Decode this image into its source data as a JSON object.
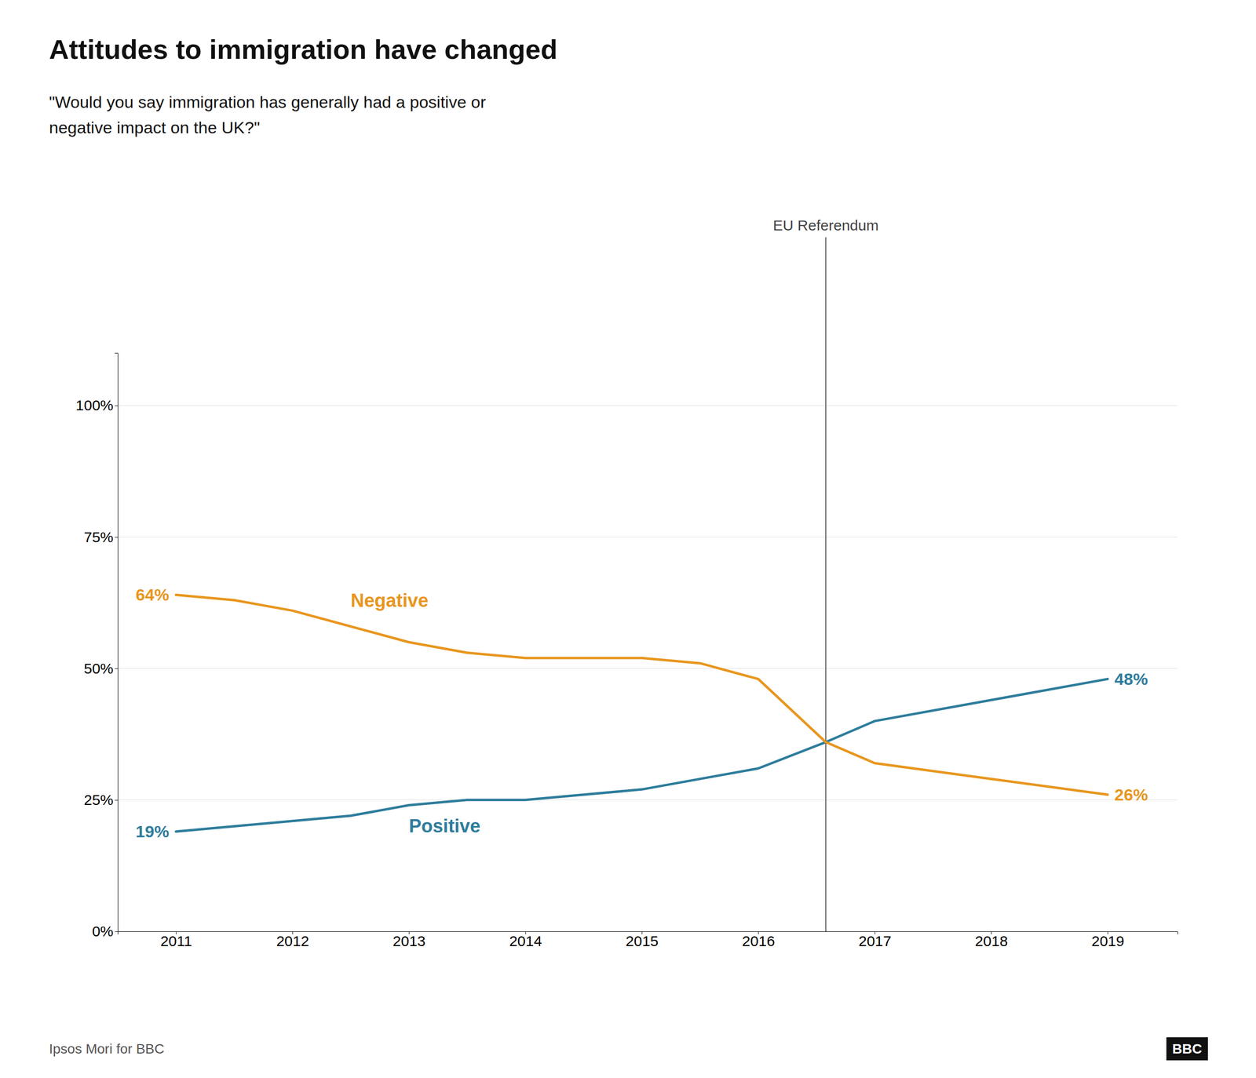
{
  "chart_data": {
    "type": "line",
    "title": "Attitudes to immigration have changed",
    "subtitle": "\"Would you say immigration has generally had a positive or\nnegative impact on the UK?\"",
    "x": [
      2011,
      2011.5,
      2012,
      2012.5,
      2013,
      2013.5,
      2014,
      2014.5,
      2015,
      2015.5,
      2016,
      2016.58,
      2017,
      2018,
      2019
    ],
    "series": [
      {
        "name": "Positive",
        "color": "#2E7D9C",
        "values": [
          19,
          20,
          21,
          22,
          24,
          25,
          25,
          26,
          27,
          29,
          31,
          36,
          40,
          44,
          48
        ],
        "value_labels": [
          "19%",
          null,
          null,
          null,
          null,
          null,
          null,
          null,
          null,
          null,
          null,
          null,
          null,
          null,
          "48%"
        ]
      },
      {
        "name": "Negative",
        "color": "#E8961E",
        "values": [
          64,
          63,
          61,
          58,
          55,
          53,
          52,
          52,
          52,
          51,
          48,
          36,
          32,
          29,
          26
        ],
        "value_labels": [
          "64%",
          null,
          null,
          null,
          null,
          null,
          null,
          null,
          null,
          null,
          null,
          null,
          null,
          null,
          "26%"
        ]
      }
    ],
    "annotations": [
      {
        "text": "EU Referendum",
        "x": 2016.58
      }
    ],
    "xlim": [
      2010.5,
      2019.6
    ],
    "xticks": [
      2011,
      2012,
      2013,
      2014,
      2015,
      2016,
      2017,
      2018,
      2019
    ],
    "ylim": [
      0,
      110
    ],
    "yticks": [
      {
        "value": 0,
        "label": "0%"
      },
      {
        "value": 25,
        "label": "25%"
      },
      {
        "value": 50,
        "label": "50%"
      },
      {
        "value": 75,
        "label": "75%"
      },
      {
        "value": 100,
        "label": "100%"
      }
    ],
    "grid": true,
    "source": "Ipsos Mori for BBC",
    "credit": "BBC"
  }
}
